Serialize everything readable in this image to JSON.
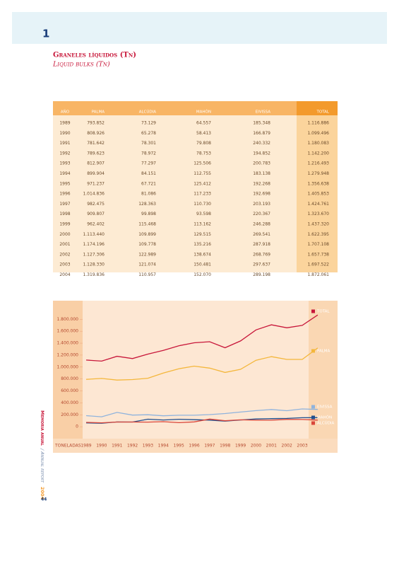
{
  "header": {
    "number": "1"
  },
  "heading": {
    "title": "Graneles líquidos (Tn)",
    "subtitle": "Liquid bulks (Tn)"
  },
  "table": {
    "header": [
      "AÑO",
      "PALMA",
      "ALCÚDIA",
      "MAHÓN",
      "EIVISSA",
      "TOTAL"
    ],
    "rows": [
      [
        "1989",
        "793.852",
        "73.129",
        "64.557",
        "185.348",
        "1.116.886"
      ],
      [
        "1990",
        "808.926",
        "65.278",
        "58.413",
        "166.879",
        "1.099.496"
      ],
      [
        "1991",
        "781.642",
        "78.301",
        "79.808",
        "240.332",
        "1.180.083"
      ],
      [
        "1992",
        "789.623",
        "78.972",
        "78.753",
        "194.852",
        "1.142.200"
      ],
      [
        "1993",
        "812.907",
        "77.297",
        "125.506",
        "200.783",
        "1.216.493"
      ],
      [
        "1994",
        "899.904",
        "84.151",
        "112.755",
        "183.138",
        "1.279.948"
      ],
      [
        "1995",
        "971.237",
        "67.721",
        "125.412",
        "192.268",
        "1.356.638"
      ],
      [
        "1996",
        "1.014.836",
        "81.086",
        "117.233",
        "192.698",
        "1.405.853"
      ],
      [
        "1997",
        "982.475",
        "128.363",
        "110.730",
        "203.193",
        "1.424.761"
      ],
      [
        "1998",
        "909.807",
        "99.898",
        "93.598",
        "220.367",
        "1.323.670"
      ],
      [
        "1999",
        "962.402",
        "115.468",
        "113.162",
        "246.288",
        "1.437.320"
      ],
      [
        "2000",
        "1.113.440",
        "109.899",
        "129.515",
        "269.541",
        "1.622.395"
      ],
      [
        "2001",
        "1.174.196",
        "109.778",
        "135.216",
        "287.918",
        "1.707.108"
      ],
      [
        "2002",
        "1.127.306",
        "122.989",
        "138.674",
        "268.769",
        "1.657.738"
      ],
      [
        "2003",
        "1.128.330",
        "121.074",
        "150.481",
        "297.637",
        "1.697.522"
      ],
      [
        "2004",
        "1.319.836",
        "110.957",
        "152.070",
        "289.198",
        "1.872.061"
      ]
    ]
  },
  "chart_data": {
    "type": "line",
    "xlabel": "TONELADAS",
    "categories": [
      "1989",
      "1990",
      "1991",
      "1992",
      "1993",
      "1994",
      "1995",
      "1996",
      "1997",
      "1998",
      "1999",
      "2000",
      "2001",
      "2002",
      "2003",
      null
    ],
    "ylim": [
      -200000,
      2100000
    ],
    "yticks": [
      {
        "value": 0,
        "label": "0"
      },
      {
        "value": 200000,
        "label": "200.000"
      },
      {
        "value": 400000,
        "label": "400.000"
      },
      {
        "value": 600000,
        "label": "600.000"
      },
      {
        "value": 800000,
        "label": "800.000"
      },
      {
        "value": 1000000,
        "label": "1.000.000"
      },
      {
        "value": 1200000,
        "label": "1.200.000"
      },
      {
        "value": 1400000,
        "label": "1.400.000"
      },
      {
        "value": 1600000,
        "label": "1.600.000"
      },
      {
        "value": 1800000,
        "label": "1.800.000"
      }
    ],
    "series": [
      {
        "name": "TOTAL",
        "color": "#c8173a",
        "values": [
          1116886,
          1099496,
          1180083,
          1142200,
          1216493,
          1279948,
          1356638,
          1405853,
          1424761,
          1323670,
          1437320,
          1622395,
          1707108,
          1657738,
          1697522,
          1872061
        ]
      },
      {
        "name": "PALMA",
        "color": "#f4b73c",
        "values": [
          793852,
          808926,
          781642,
          789623,
          812907,
          899904,
          971237,
          1014836,
          982475,
          909807,
          962402,
          1113440,
          1174196,
          1127306,
          1128330,
          1319836
        ]
      },
      {
        "name": "EIVISSA",
        "color": "#8fb3dd",
        "values": [
          185348,
          166879,
          240332,
          194852,
          200783,
          183138,
          192268,
          192698,
          203193,
          220367,
          246288,
          269541,
          287918,
          268769,
          297637,
          289198
        ]
      },
      {
        "name": "MAHÓN",
        "color": "#1f4f8f",
        "values": [
          64557,
          58413,
          79808,
          78753,
          125506,
          112755,
          125412,
          117233,
          110730,
          93598,
          113162,
          129515,
          135216,
          138674,
          150481,
          152070
        ]
      },
      {
        "name": "ALCÚDIA",
        "color": "#d9463a",
        "values": [
          73129,
          65278,
          78301,
          78972,
          77297,
          84151,
          67721,
          81086,
          128363,
          99898,
          115468,
          109899,
          109778,
          122989,
          121074,
          110957
        ]
      }
    ]
  },
  "sidebar": {
    "memoria": "Memoria anual",
    "report": "/ Annual report",
    "year": "2004"
  },
  "footer": {
    "page": "44"
  }
}
